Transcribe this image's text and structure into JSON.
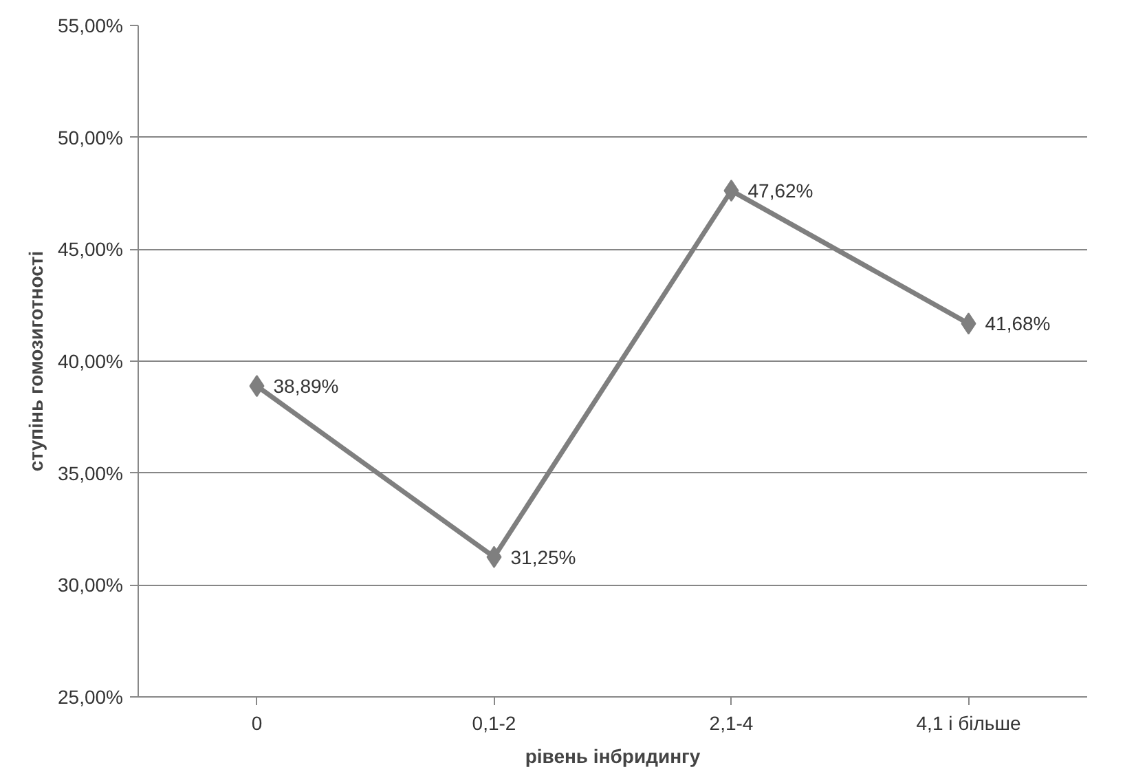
{
  "chart_data": {
    "type": "line",
    "xlabel": "рівень інбридингу",
    "ylabel": "ступінь гомозиготності",
    "categories": [
      "0",
      "0,1-2",
      "2,1-4",
      "4,1 і більше"
    ],
    "series": [
      {
        "color": "#7f7f7f",
        "values": [
          38.89,
          31.25,
          47.62,
          41.68
        ],
        "value_labels": [
          "38,89%",
          "31,25%",
          "47,62%",
          "41,68%"
        ]
      }
    ],
    "ylim": [
      25,
      55
    ],
    "yticks": [
      {
        "value": 25,
        "label": "25,00%"
      },
      {
        "value": 30,
        "label": "30,00%"
      },
      {
        "value": 35,
        "label": "35,00%"
      },
      {
        "value": 40,
        "label": "40,00%"
      },
      {
        "value": 45,
        "label": "45,00%"
      },
      {
        "value": 50,
        "label": "50,00%"
      },
      {
        "value": 55,
        "label": "55,00%"
      }
    ],
    "grid": "y",
    "marker": "diamond",
    "line_style": "solid"
  }
}
